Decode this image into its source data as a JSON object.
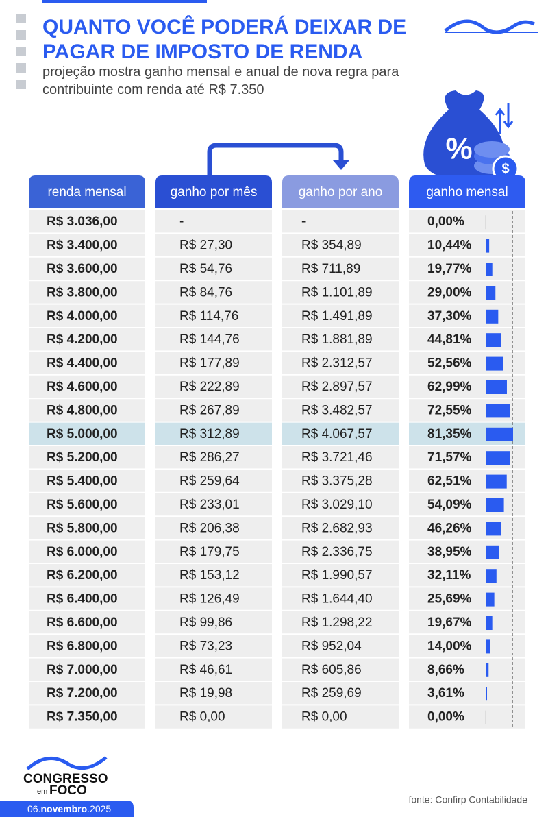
{
  "header": {
    "title": "QUANTO VOCÊ PODERÁ DEIXAR DE PAGAR DE IMPOSTO DE RENDA",
    "subtitle": "projeção mostra ganho mensal e anual de nova regra para contribuinte com renda até R$ 7.350"
  },
  "table": {
    "columns": [
      "renda mensal",
      "ganho por mês",
      "ganho por ano",
      "ganho mensal"
    ],
    "rows": [
      [
        "R$ 3.036,00",
        "-",
        "-"
      ],
      [
        "R$ 3.400,00",
        "R$ 27,30",
        "R$ 354,89"
      ],
      [
        "R$ 3.600,00",
        "R$ 54,76",
        "R$ 711,89"
      ],
      [
        "R$ 3.800,00",
        "R$ 84,76",
        "R$ 1.101,89"
      ],
      [
        "R$ 4.000,00",
        "R$ 114,76",
        "R$ 1.491,89"
      ],
      [
        "R$ 4.200,00",
        "R$ 144,76",
        "R$ 1.881,89"
      ],
      [
        "R$ 4.400,00",
        "R$ 177,89",
        "R$ 2.312,57"
      ],
      [
        "R$ 4.600,00",
        "R$ 222,89",
        "R$ 2.897,57"
      ],
      [
        "R$ 4.800,00",
        "R$ 267,89",
        "R$ 3.482,57"
      ],
      [
        "R$ 5.000,00",
        "R$ 312,89",
        "R$ 4.067,57"
      ],
      [
        "R$ 5.200,00",
        "R$ 286,27",
        "R$ 3.721,46"
      ],
      [
        "R$ 5.400,00",
        "R$ 259,64",
        "R$ 3.375,28"
      ],
      [
        "R$ 5.600,00",
        "R$ 233,01",
        "R$ 3.029,10"
      ],
      [
        "R$ 5.800,00",
        "R$ 206,38",
        "R$ 2.682,93"
      ],
      [
        "R$ 6.000,00",
        "R$ 179,75",
        "R$ 2.336,75"
      ],
      [
        "R$ 6.200,00",
        "R$ 153,12",
        "R$ 1.990,57"
      ],
      [
        "R$ 6.400,00",
        "R$ 126,49",
        "R$ 1.644,40"
      ],
      [
        "R$ 6.600,00",
        "R$ 99,86",
        "R$ 1.298,22"
      ],
      [
        "R$ 6.800,00",
        "R$ 73,23",
        "R$ 952,04"
      ],
      [
        "R$ 7.000,00",
        "R$ 46,61",
        "R$ 605,86"
      ],
      [
        "R$ 7.200,00",
        "R$ 19,98",
        "R$ 259,69"
      ],
      [
        "R$ 7.350,00",
        "R$ 0,00",
        "R$ 0,00"
      ]
    ],
    "gain_pct": {
      "color": "#2a5bf0",
      "values": [
        0,
        10.44,
        19.77,
        29.0,
        37.3,
        44.81,
        52.56,
        62.99,
        72.55,
        81.35,
        71.57,
        62.51,
        54.09,
        46.26,
        38.95,
        32.11,
        25.69,
        19.67,
        14.0,
        8.66,
        3.61,
        0
      ],
      "value_labels": [
        "0,00%",
        "10,44%",
        "19,77%",
        "29,00%",
        "37,30%",
        "44,81%",
        "52,56%",
        "62,99%",
        "72,55%",
        "81,35%",
        "71,57%",
        "62,51%",
        "54,09%",
        "46,26%",
        "38,95%",
        "32,11%",
        "25,69%",
        "19,67%",
        "14,00%",
        "8,66%",
        "3,61%",
        "0,00%"
      ]
    }
  },
  "footer": {
    "logo": [
      "CONGRESSO",
      "em",
      "FOCO"
    ],
    "date": [
      "06.",
      "novembro",
      ".2025"
    ],
    "source": "fonte: Confirp Contabilidade"
  }
}
